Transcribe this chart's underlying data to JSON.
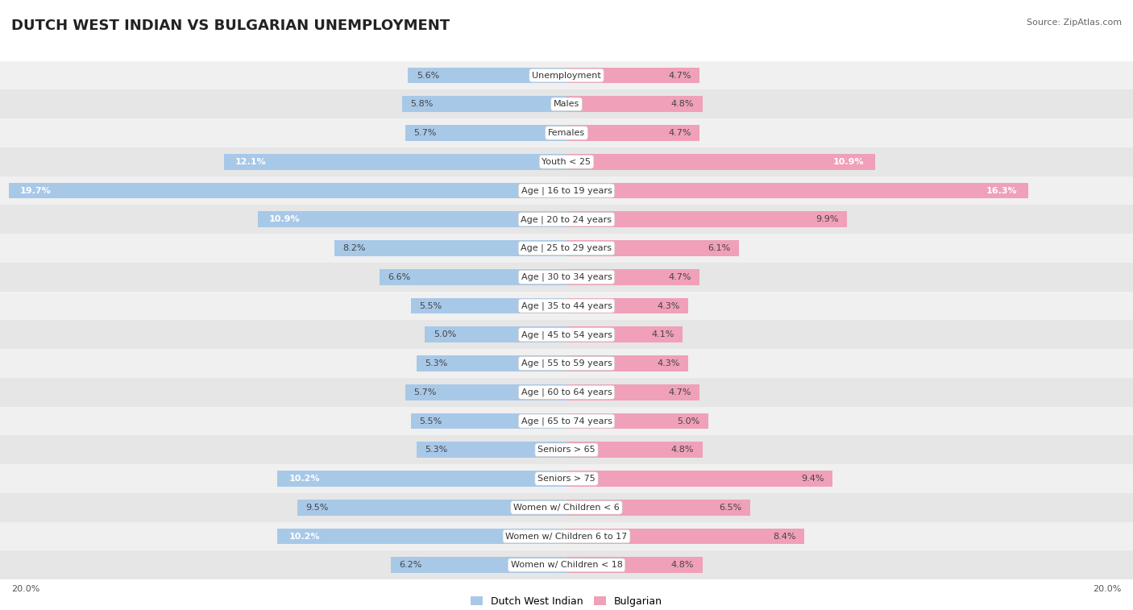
{
  "title": "DUTCH WEST INDIAN VS BULGARIAN UNEMPLOYMENT",
  "source": "Source: ZipAtlas.com",
  "categories": [
    "Unemployment",
    "Males",
    "Females",
    "Youth < 25",
    "Age | 16 to 19 years",
    "Age | 20 to 24 years",
    "Age | 25 to 29 years",
    "Age | 30 to 34 years",
    "Age | 35 to 44 years",
    "Age | 45 to 54 years",
    "Age | 55 to 59 years",
    "Age | 60 to 64 years",
    "Age | 65 to 74 years",
    "Seniors > 65",
    "Seniors > 75",
    "Women w/ Children < 6",
    "Women w/ Children 6 to 17",
    "Women w/ Children < 18"
  ],
  "dutch_values": [
    5.6,
    5.8,
    5.7,
    12.1,
    19.7,
    10.9,
    8.2,
    6.6,
    5.5,
    5.0,
    5.3,
    5.7,
    5.5,
    5.3,
    10.2,
    9.5,
    10.2,
    6.2
  ],
  "bulgarian_values": [
    4.7,
    4.8,
    4.7,
    10.9,
    16.3,
    9.9,
    6.1,
    4.7,
    4.3,
    4.1,
    4.3,
    4.7,
    5.0,
    4.8,
    9.4,
    6.5,
    8.4,
    4.8
  ],
  "dutch_color": "#a8c8e8",
  "bulgarian_color": "#f0a0b8",
  "dutch_label": "Dutch West Indian",
  "bulgarian_label": "Bulgarian",
  "row_bg_colors": [
    "#f0f0f0",
    "#e6e6e6"
  ],
  "max_value": 20.0,
  "title_fontsize": 13,
  "source_fontsize": 8,
  "bar_label_fontsize": 8,
  "category_fontsize": 8,
  "legend_fontsize": 9,
  "axis_label_fontsize": 8
}
